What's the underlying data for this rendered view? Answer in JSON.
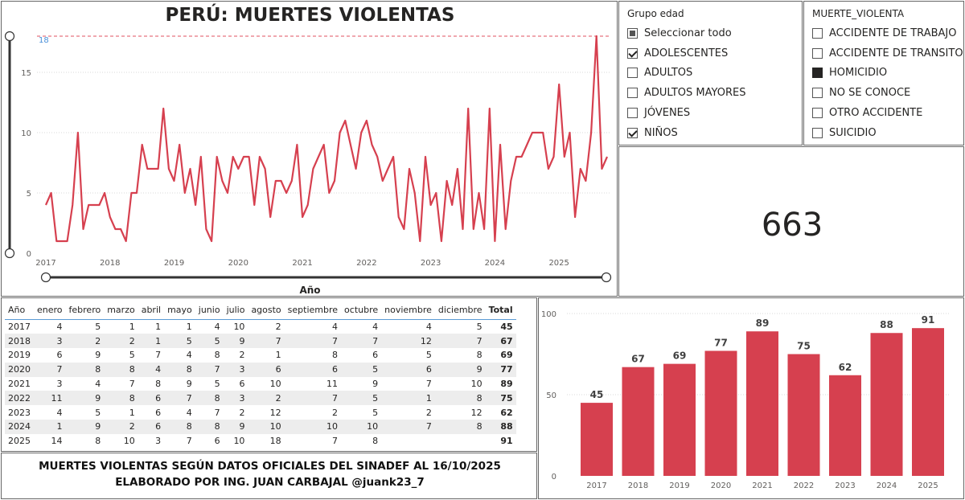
{
  "line_chart": {
    "title": "PERÚ: MUERTES VIOLENTAS",
    "xlabel": "Año",
    "max_label": "18"
  },
  "grupo_edad": {
    "header": "Grupo edad",
    "items": [
      {
        "label": "Seleccionar todo",
        "state": "partial"
      },
      {
        "label": "ADOLESCENTES",
        "state": "checked"
      },
      {
        "label": "ADULTOS",
        "state": "unchecked"
      },
      {
        "label": "ADULTOS MAYORES",
        "state": "unchecked"
      },
      {
        "label": "JÓVENES",
        "state": "unchecked"
      },
      {
        "label": "NIÑOS",
        "state": "checked"
      }
    ]
  },
  "muerte_violenta": {
    "header": "MUERTE_VIOLENTA",
    "items": [
      {
        "label": "ACCIDENTE DE TRABAJO",
        "state": "unchecked"
      },
      {
        "label": "ACCIDENTE DE TRANSITO",
        "state": "unchecked"
      },
      {
        "label": "HOMICIDIO",
        "state": "filled"
      },
      {
        "label": "NO SE CONOCE",
        "state": "unchecked"
      },
      {
        "label": "OTRO ACCIDENTE",
        "state": "unchecked"
      },
      {
        "label": "SUICIDIO",
        "state": "unchecked"
      }
    ]
  },
  "card": {
    "value": "663"
  },
  "table": {
    "headers": [
      "Año",
      "enero",
      "febrero",
      "marzo",
      "abril",
      "mayo",
      "junio",
      "julio",
      "agosto",
      "septiembre",
      "octubre",
      "noviembre",
      "diciembre",
      "Total"
    ],
    "rows": [
      [
        "2017",
        "4",
        "5",
        "1",
        "1",
        "1",
        "4",
        "10",
        "2",
        "4",
        "4",
        "4",
        "5",
        "45"
      ],
      [
        "2018",
        "3",
        "2",
        "2",
        "1",
        "5",
        "5",
        "9",
        "7",
        "7",
        "7",
        "12",
        "7",
        "67"
      ],
      [
        "2019",
        "6",
        "9",
        "5",
        "7",
        "4",
        "8",
        "2",
        "1",
        "8",
        "6",
        "5",
        "8",
        "69"
      ],
      [
        "2020",
        "7",
        "8",
        "8",
        "4",
        "8",
        "7",
        "3",
        "6",
        "6",
        "5",
        "6",
        "9",
        "77"
      ],
      [
        "2021",
        "3",
        "4",
        "7",
        "8",
        "9",
        "5",
        "6",
        "10",
        "11",
        "9",
        "7",
        "10",
        "89"
      ],
      [
        "2022",
        "11",
        "9",
        "8",
        "6",
        "7",
        "8",
        "3",
        "2",
        "7",
        "5",
        "1",
        "8",
        "75"
      ],
      [
        "2023",
        "4",
        "5",
        "1",
        "6",
        "4",
        "7",
        "2",
        "12",
        "2",
        "5",
        "2",
        "12",
        "62"
      ],
      [
        "2024",
        "1",
        "9",
        "2",
        "6",
        "8",
        "8",
        "9",
        "10",
        "10",
        "10",
        "7",
        "8",
        "88"
      ],
      [
        "2025",
        "14",
        "8",
        "10",
        "3",
        "7",
        "6",
        "10",
        "18",
        "7",
        "8",
        "",
        "",
        "91"
      ]
    ]
  },
  "footer": {
    "line1": "MUERTES VIOLENTAS SEGÚN DATOS OFICIALES DEL SINADEF AL 16/10/2025",
    "line2": "ELABORADO POR ING. JUAN CARBAJAL @juank23_7"
  },
  "colors": {
    "series": "#d6404f",
    "max_line": "#e8737f",
    "max_label": "#4a90d9",
    "gridline": "#d9d9d9",
    "axis_text": "#605e5c"
  },
  "chart_data": [
    {
      "type": "line",
      "title": "PERÚ: MUERTES VIOLENTAS",
      "xlabel": "Año",
      "ylabel": "",
      "x_tick_labels": [
        "2017",
        "2018",
        "2019",
        "2020",
        "2021",
        "2022",
        "2023",
        "2024",
        "2025"
      ],
      "y_ticks": [
        0,
        5,
        10,
        15
      ],
      "ylim": [
        0,
        18
      ],
      "max_reference_line": 18,
      "x_start": "2017-01",
      "x_end": "2025-10",
      "x_interval": "monthly",
      "series": [
        {
          "values": [
            4,
            5,
            1,
            1,
            1,
            4,
            10,
            2,
            4,
            4,
            4,
            5,
            3,
            2,
            2,
            1,
            5,
            5,
            9,
            7,
            7,
            7,
            12,
            7,
            6,
            9,
            5,
            7,
            4,
            8,
            2,
            1,
            8,
            6,
            5,
            8,
            7,
            8,
            8,
            4,
            8,
            7,
            3,
            6,
            6,
            5,
            6,
            9,
            3,
            4,
            7,
            8,
            9,
            5,
            6,
            10,
            11,
            9,
            7,
            10,
            11,
            9,
            8,
            6,
            7,
            8,
            3,
            2,
            7,
            5,
            1,
            8,
            4,
            5,
            1,
            6,
            4,
            7,
            2,
            12,
            2,
            5,
            2,
            12,
            1,
            9,
            2,
            6,
            8,
            8,
            9,
            10,
            10,
            10,
            7,
            8,
            14,
            8,
            10,
            3,
            7,
            6,
            10,
            18,
            7,
            8
          ]
        }
      ]
    },
    {
      "type": "bar",
      "categories": [
        "2017",
        "2018",
        "2019",
        "2020",
        "2021",
        "2022",
        "2023",
        "2024",
        "2025"
      ],
      "values": [
        45,
        67,
        69,
        77,
        89,
        75,
        62,
        88,
        91
      ],
      "y_ticks": [
        0,
        50,
        100
      ],
      "ylim": [
        0,
        100
      ],
      "data_labels": true
    }
  ]
}
